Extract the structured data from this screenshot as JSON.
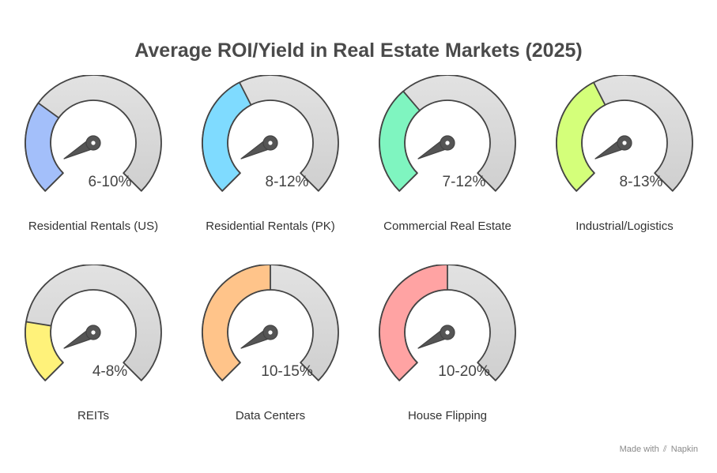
{
  "title": "Average ROI/Yield in Real Estate Markets (2025)",
  "footer": {
    "prefix": "Made with",
    "brand": "Napkin",
    "icon": "napkin-logo-icon"
  },
  "chart_data": {
    "type": "gauge",
    "title": "Average ROI/Yield in Real Estate Markets (2025)",
    "items": [
      {
        "category": "Residential Rentals (US)",
        "range_label": "6-10%",
        "min": 6,
        "max": 10,
        "color": "#a3bffa"
      },
      {
        "category": "Residential Rentals (PK)",
        "range_label": "8-12%",
        "min": 8,
        "max": 12,
        "color": "#7fdbff"
      },
      {
        "category": "Commercial Real Estate",
        "range_label": "7-12%",
        "min": 7,
        "max": 12,
        "color": "#7ff5c0"
      },
      {
        "category": "Industrial/Logistics",
        "range_label": "8-13%",
        "min": 8,
        "max": 13,
        "color": "#d4ff7a"
      },
      {
        "category": "REITs",
        "range_label": "4-8%",
        "min": 4,
        "max": 8,
        "color": "#fff27a"
      },
      {
        "category": "Data Centers",
        "range_label": "10-15%",
        "min": 10,
        "max": 15,
        "color": "#ffc48a"
      },
      {
        "category": "House Flipping",
        "range_label": "10-20%",
        "min": 10,
        "max": 20,
        "color": "#ffa3a3"
      }
    ]
  }
}
